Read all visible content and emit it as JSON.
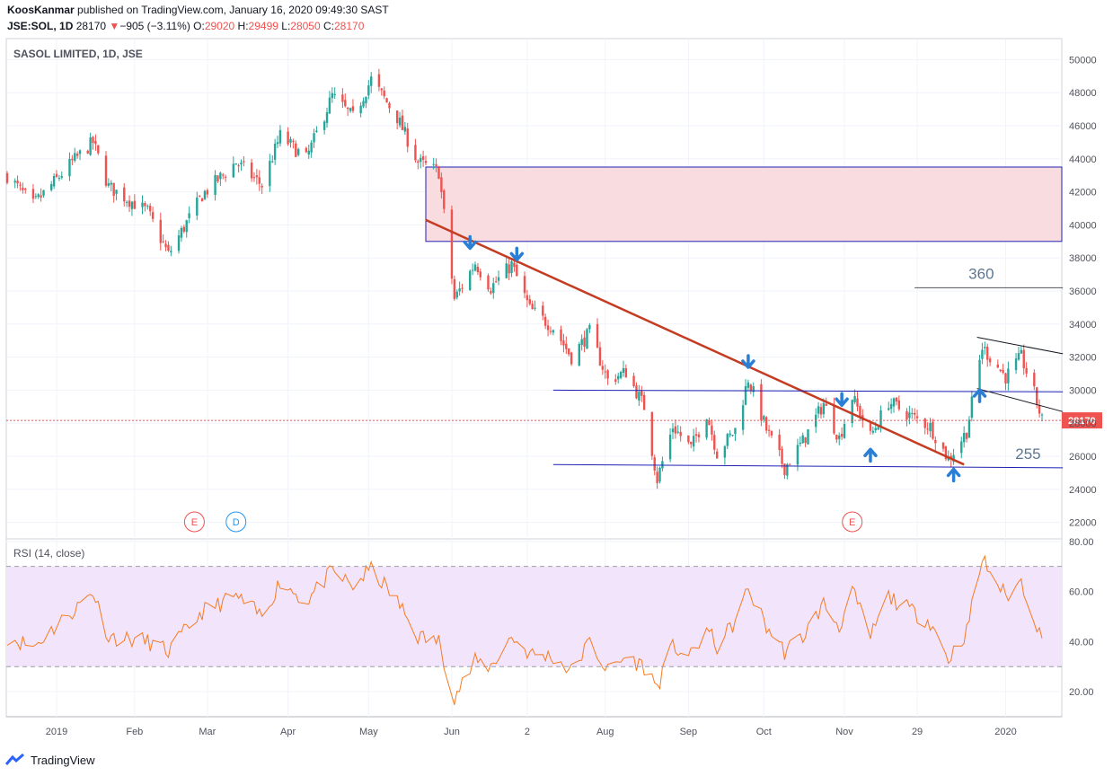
{
  "header": {
    "author": "KoosKanmar",
    "published_text": " published on TradingView.com, January 16, 2020 09:49:30 SAST",
    "symbol": "JSE:SOL, 1D",
    "last": "28170",
    "change": "−905 (−3.11%)",
    "open_label": "O:",
    "open": "29020",
    "high_label": "H:",
    "high": "29499",
    "low_label": "L:",
    "low": "28050",
    "close_label": "C:",
    "close": "28170"
  },
  "footer": {
    "brand": "TradingView"
  },
  "colors": {
    "up": "#26a69a",
    "down": "#ef5350",
    "rsi": "#f57c23",
    "trend": "#c43c22",
    "zone": "#f9dcdf",
    "arrow": "#2a7fd4",
    "band": "#f2e4fb",
    "level": "#1e22b4"
  },
  "chart_data": [
    {
      "type": "candlestick",
      "title": "SASOL LIMITED, 1D, JSE",
      "ylim": [
        21000,
        51000
      ],
      "y_ticks": [
        "50000",
        "48000",
        "46000",
        "44000",
        "42000",
        "40000",
        "38000",
        "36000",
        "34000",
        "32000",
        "30000",
        "28000",
        "26000",
        "24000",
        "22000"
      ],
      "x_ticks": [
        "2019",
        "Feb",
        "Mar",
        "Apr",
        "May",
        "Jun",
        "2",
        "Aug",
        "Sep",
        "Oct",
        "Nov",
        "29",
        "2020"
      ],
      "last_price_label": "28170",
      "price_path": [
        {
          "date": "2018-12-14",
          "price": 43000
        },
        {
          "date": "2018-12-24",
          "price": 41200
        },
        {
          "date": "2019-01-08",
          "price": 43800
        },
        {
          "date": "2019-01-16",
          "price": 45000
        },
        {
          "date": "2019-01-22",
          "price": 42300
        },
        {
          "date": "2019-02-06",
          "price": 40800
        },
        {
          "date": "2019-02-14",
          "price": 38200
        },
        {
          "date": "2019-02-27",
          "price": 41800
        },
        {
          "date": "2019-03-12",
          "price": 43800
        },
        {
          "date": "2019-03-22",
          "price": 42400
        },
        {
          "date": "2019-03-29",
          "price": 45400
        },
        {
          "date": "2019-04-08",
          "price": 44000
        },
        {
          "date": "2019-04-18",
          "price": 47800
        },
        {
          "date": "2019-04-26",
          "price": 46500
        },
        {
          "date": "2019-05-03",
          "price": 48800
        },
        {
          "date": "2019-05-13",
          "price": 46500
        },
        {
          "date": "2019-05-21",
          "price": 43800
        },
        {
          "date": "2019-05-29",
          "price": 43200
        },
        {
          "date": "2019-06-04",
          "price": 35500
        },
        {
          "date": "2019-06-12",
          "price": 37700
        },
        {
          "date": "2019-06-18",
          "price": 36200
        },
        {
          "date": "2019-06-26",
          "price": 37600
        },
        {
          "date": "2019-07-03",
          "price": 34900
        },
        {
          "date": "2019-07-12",
          "price": 33800
        },
        {
          "date": "2019-07-19",
          "price": 32000
        },
        {
          "date": "2019-07-26",
          "price": 33500
        },
        {
          "date": "2019-08-02",
          "price": 30600
        },
        {
          "date": "2019-08-09",
          "price": 31100
        },
        {
          "date": "2019-08-16",
          "price": 29000
        },
        {
          "date": "2019-08-21",
          "price": 24600
        },
        {
          "date": "2019-08-27",
          "price": 27800
        },
        {
          "date": "2019-09-03",
          "price": 26500
        },
        {
          "date": "2019-09-09",
          "price": 28600
        },
        {
          "date": "2019-09-13",
          "price": 26200
        },
        {
          "date": "2019-09-20",
          "price": 27600
        },
        {
          "date": "2019-09-25",
          "price": 30700
        },
        {
          "date": "2019-10-02",
          "price": 27600
        },
        {
          "date": "2019-10-09",
          "price": 25300
        },
        {
          "date": "2019-10-16",
          "price": 26900
        },
        {
          "date": "2019-10-24",
          "price": 29200
        },
        {
          "date": "2019-10-30",
          "price": 27100
        },
        {
          "date": "2019-11-04",
          "price": 29600
        },
        {
          "date": "2019-11-11",
          "price": 27200
        },
        {
          "date": "2019-11-18",
          "price": 29300
        },
        {
          "date": "2019-11-27",
          "price": 28400
        },
        {
          "date": "2019-12-04",
          "price": 27800
        },
        {
          "date": "2019-12-11",
          "price": 25800
        },
        {
          "date": "2019-12-18",
          "price": 27500
        },
        {
          "date": "2019-12-24",
          "price": 32600
        },
        {
          "date": "2020-01-02",
          "price": 30800
        },
        {
          "date": "2020-01-08",
          "price": 32000
        },
        {
          "date": "2020-01-13",
          "price": 29800
        },
        {
          "date": "2020-01-16",
          "price": 28170
        }
      ],
      "annotations": {
        "labels": [
          {
            "date": "2019-11-28",
            "price": 36200,
            "text": "360"
          },
          {
            "date": "2019-12-16",
            "price": 25300,
            "text": "255"
          }
        ],
        "resistance_zone": {
          "from": "2019-05-24",
          "price_low": 39000,
          "price_high": 43500
        },
        "trendline": [
          {
            "date": "2019-05-24",
            "price": 40300
          },
          {
            "date": "2019-12-17",
            "price": 25500
          }
        ],
        "level_lines": [
          {
            "start": {
              "date": "2019-07-12",
              "price": 30000
            },
            "end": {
              "date": "2020-01-24",
              "price": 29900
            }
          },
          {
            "start": {
              "date": "2019-07-12",
              "price": 25500
            },
            "end": {
              "date": "2020-01-24",
              "price": 25300
            }
          },
          {
            "start": {
              "date": "2019-11-28",
              "price": 36200
            },
            "end": {
              "date": "2020-01-24",
              "price": 36200
            }
          }
        ],
        "channel_lines": [
          {
            "start": {
              "date": "2019-12-22",
              "price": 33200
            },
            "end": {
              "date": "2020-01-24",
              "price": 32200
            }
          },
          {
            "start": {
              "date": "2019-12-22",
              "price": 30100
            },
            "end": {
              "date": "2020-01-24",
              "price": 28700
            }
          }
        ],
        "down_arrows": [
          {
            "date": "2019-06-10",
            "price": 38800
          },
          {
            "date": "2019-06-28",
            "price": 38100
          },
          {
            "date": "2019-09-25",
            "price": 31600
          },
          {
            "date": "2019-10-31",
            "price": 29300
          }
        ],
        "up_arrows": [
          {
            "date": "2019-11-11",
            "price": 26200
          },
          {
            "date": "2019-12-13",
            "price": 25000
          },
          {
            "date": "2019-12-23",
            "price": 29800
          }
        ],
        "event_markers": [
          {
            "date": "2019-02-24",
            "label": "E"
          },
          {
            "date": "2019-03-12",
            "label": "D"
          },
          {
            "date": "2019-11-04",
            "label": "E"
          }
        ]
      }
    },
    {
      "type": "line",
      "title": "RSI (14, close)",
      "ylim": [
        10,
        81
      ],
      "y_ticks": [
        "80.00",
        "60.00",
        "40.00",
        "20.00"
      ],
      "bands": [
        30,
        70
      ],
      "rsi_path": [
        {
          "date": "2018-12-14",
          "rsi": 42
        },
        {
          "date": "2018-12-24",
          "rsi": 38
        },
        {
          "date": "2019-01-08",
          "rsi": 52
        },
        {
          "date": "2019-01-16",
          "rsi": 60
        },
        {
          "date": "2019-01-22",
          "rsi": 42
        },
        {
          "date": "2019-02-06",
          "rsi": 40
        },
        {
          "date": "2019-02-14",
          "rsi": 36
        },
        {
          "date": "2019-02-27",
          "rsi": 52
        },
        {
          "date": "2019-03-12",
          "rsi": 58
        },
        {
          "date": "2019-03-22",
          "rsi": 50
        },
        {
          "date": "2019-03-29",
          "rsi": 64
        },
        {
          "date": "2019-04-08",
          "rsi": 56
        },
        {
          "date": "2019-04-18",
          "rsi": 68
        },
        {
          "date": "2019-04-26",
          "rsi": 62
        },
        {
          "date": "2019-05-03",
          "rsi": 69
        },
        {
          "date": "2019-05-13",
          "rsi": 56
        },
        {
          "date": "2019-05-21",
          "rsi": 42
        },
        {
          "date": "2019-05-29",
          "rsi": 40
        },
        {
          "date": "2019-06-04",
          "rsi": 18
        },
        {
          "date": "2019-06-12",
          "rsi": 32
        },
        {
          "date": "2019-06-18",
          "rsi": 30
        },
        {
          "date": "2019-06-26",
          "rsi": 42
        },
        {
          "date": "2019-07-03",
          "rsi": 35
        },
        {
          "date": "2019-07-12",
          "rsi": 34
        },
        {
          "date": "2019-07-19",
          "rsi": 28
        },
        {
          "date": "2019-07-26",
          "rsi": 40
        },
        {
          "date": "2019-08-02",
          "rsi": 28
        },
        {
          "date": "2019-08-09",
          "rsi": 34
        },
        {
          "date": "2019-08-16",
          "rsi": 30
        },
        {
          "date": "2019-08-21",
          "rsi": 22
        },
        {
          "date": "2019-08-27",
          "rsi": 38
        },
        {
          "date": "2019-09-03",
          "rsi": 34
        },
        {
          "date": "2019-09-09",
          "rsi": 45
        },
        {
          "date": "2019-09-13",
          "rsi": 38
        },
        {
          "date": "2019-09-20",
          "rsi": 48
        },
        {
          "date": "2019-09-25",
          "rsi": 61
        },
        {
          "date": "2019-10-02",
          "rsi": 46
        },
        {
          "date": "2019-10-09",
          "rsi": 36
        },
        {
          "date": "2019-10-16",
          "rsi": 42
        },
        {
          "date": "2019-10-24",
          "rsi": 55
        },
        {
          "date": "2019-10-30",
          "rsi": 46
        },
        {
          "date": "2019-11-04",
          "rsi": 60
        },
        {
          "date": "2019-11-11",
          "rsi": 42
        },
        {
          "date": "2019-11-18",
          "rsi": 58
        },
        {
          "date": "2019-11-27",
          "rsi": 52
        },
        {
          "date": "2019-12-04",
          "rsi": 48
        },
        {
          "date": "2019-12-11",
          "rsi": 33
        },
        {
          "date": "2019-12-18",
          "rsi": 44
        },
        {
          "date": "2019-12-24",
          "rsi": 73
        },
        {
          "date": "2020-01-02",
          "rsi": 58
        },
        {
          "date": "2020-01-08",
          "rsi": 64
        },
        {
          "date": "2020-01-13",
          "rsi": 50
        },
        {
          "date": "2020-01-16",
          "rsi": 40
        }
      ]
    }
  ]
}
